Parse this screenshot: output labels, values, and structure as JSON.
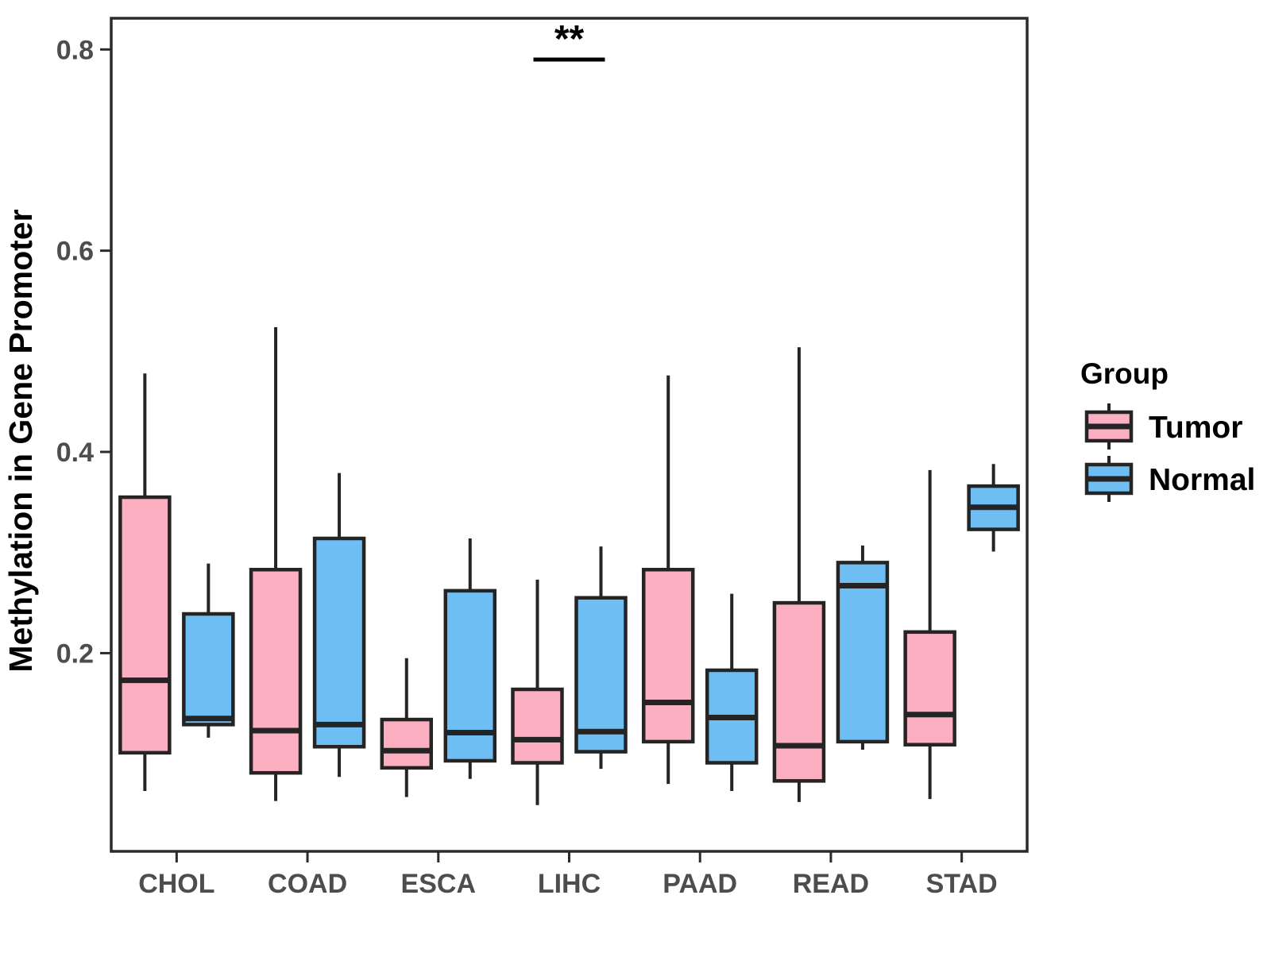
{
  "chart_data": {
    "type": "box",
    "title": "",
    "xlabel": "",
    "ylabel": "Methylation in Gene Promoter",
    "ylim": [
      0.003,
      0.831
    ],
    "yticks": [
      0.2,
      0.4,
      0.6,
      0.8
    ],
    "grid": false,
    "categories": [
      "CHOL",
      "COAD",
      "ESCA",
      "LIHC",
      "PAAD",
      "READ",
      "STAD"
    ],
    "series": [
      {
        "name": "Tumor",
        "color": "#FBAFC1",
        "boxes": [
          {
            "category": "CHOL",
            "low": 0.063,
            "q1": 0.101,
            "median": 0.173,
            "q3": 0.355,
            "high": 0.478
          },
          {
            "category": "COAD",
            "low": 0.053,
            "q1": 0.081,
            "median": 0.123,
            "q3": 0.283,
            "high": 0.524
          },
          {
            "category": "ESCA",
            "low": 0.057,
            "q1": 0.086,
            "median": 0.103,
            "q3": 0.134,
            "high": 0.195
          },
          {
            "category": "LIHC",
            "low": 0.049,
            "q1": 0.091,
            "median": 0.114,
            "q3": 0.164,
            "high": 0.273
          },
          {
            "category": "PAAD",
            "low": 0.07,
            "q1": 0.112,
            "median": 0.151,
            "q3": 0.283,
            "high": 0.476
          },
          {
            "category": "READ",
            "low": 0.052,
            "q1": 0.073,
            "median": 0.108,
            "q3": 0.25,
            "high": 0.504
          },
          {
            "category": "STAD",
            "low": 0.055,
            "q1": 0.109,
            "median": 0.139,
            "q3": 0.221,
            "high": 0.382
          }
        ]
      },
      {
        "name": "Normal",
        "color": "#6EBEF3",
        "boxes": [
          {
            "category": "CHOL",
            "low": 0.116,
            "q1": 0.129,
            "median": 0.135,
            "q3": 0.239,
            "high": 0.289
          },
          {
            "category": "COAD",
            "low": 0.077,
            "q1": 0.107,
            "median": 0.129,
            "q3": 0.314,
            "high": 0.379
          },
          {
            "category": "ESCA",
            "low": 0.075,
            "q1": 0.093,
            "median": 0.121,
            "q3": 0.262,
            "high": 0.314
          },
          {
            "category": "LIHC",
            "low": 0.085,
            "q1": 0.102,
            "median": 0.122,
            "q3": 0.255,
            "high": 0.306
          },
          {
            "category": "PAAD",
            "low": 0.063,
            "q1": 0.091,
            "median": 0.136,
            "q3": 0.183,
            "high": 0.259
          },
          {
            "category": "READ",
            "low": 0.104,
            "q1": 0.112,
            "median": 0.267,
            "q3": 0.29,
            "high": 0.307
          },
          {
            "category": "STAD",
            "low": 0.301,
            "q1": 0.323,
            "median": 0.345,
            "q3": 0.366,
            "high": 0.388
          }
        ]
      }
    ],
    "annotation": {
      "text": "**",
      "category": "LIHC",
      "y": 0.79
    },
    "legend": {
      "title": "Group",
      "position": "right",
      "entries": [
        "Tumor",
        "Normal"
      ]
    },
    "colors": {
      "tumor_fill": "#FBAFC1",
      "normal_fill": "#6EBEF3",
      "outline": "#242424",
      "axis_text": "#4d4d4d",
      "axis_line": "#2b2b2b"
    }
  }
}
